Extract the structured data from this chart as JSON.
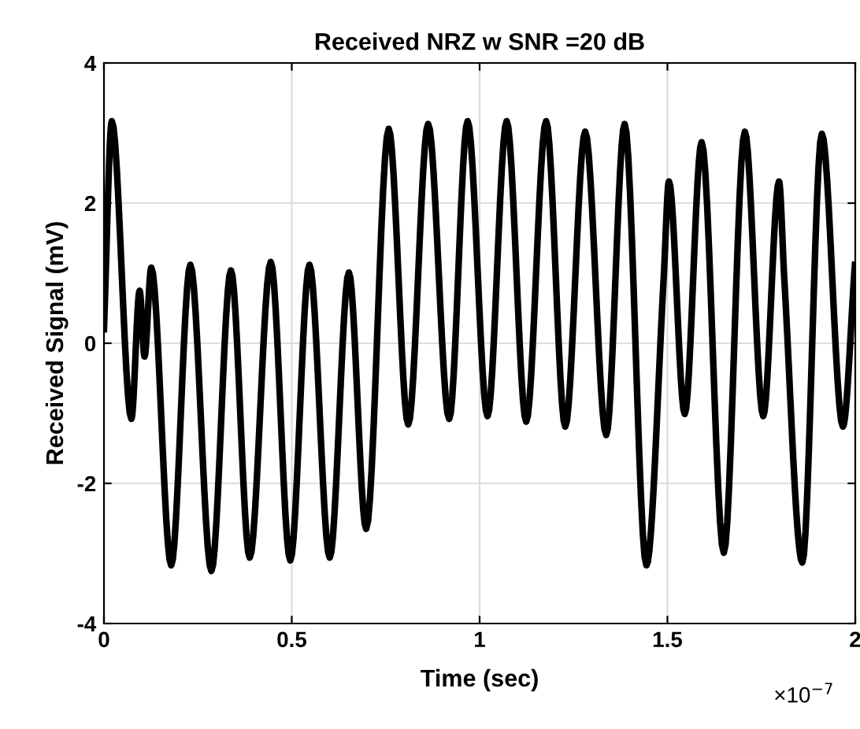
{
  "chart_data": {
    "type": "line",
    "title": "Received NRZ w SNR =20 dB",
    "xlabel": "Time (sec)",
    "ylabel": "Received Signal (mV)",
    "annotations": [
      "×10$^{−7}$"
    ],
    "series": [
      {
        "color": "#000000",
        "x": [
          0,
          0.021,
          0.073,
          0.095,
          0.108,
          0.126,
          0.179,
          0.23,
          0.286,
          0.338,
          0.388,
          0.444,
          0.496,
          0.547,
          0.601,
          0.652,
          0.698,
          0.758,
          0.81,
          0.863,
          0.919,
          0.968,
          1.021,
          1.072,
          1.124,
          1.177,
          1.228,
          1.281,
          1.337,
          1.386,
          1.444,
          1.49,
          1.504,
          1.546,
          1.591,
          1.65,
          1.706,
          1.755,
          1.797,
          1.811,
          1.859,
          1.911,
          1.967,
          1.999
        ],
        "values": [
          0.2,
          3.17,
          -1.08,
          0.75,
          -0.19,
          1.08,
          -3.17,
          1.12,
          -3.25,
          1.04,
          -3.06,
          1.16,
          -3.1,
          1.12,
          -3.06,
          1.01,
          -2.65,
          3.06,
          -1.16,
          3.13,
          -1.08,
          3.17,
          -1.04,
          3.17,
          -1.12,
          3.17,
          -1.19,
          3.02,
          -1.31,
          3.13,
          -3.17,
          0.93,
          2.31,
          -1.01,
          2.87,
          -2.99,
          3.02,
          -1.04,
          2.31,
          0.93,
          -3.13,
          2.99,
          -1.19,
          1.12
        ]
      }
    ],
    "xlim": [
      0,
      2
    ],
    "xticks": [
      0,
      0.5,
      1,
      1.5,
      2
    ],
    "ylim": [
      -4,
      4
    ],
    "yticks": [
      -4,
      -2,
      0,
      2,
      4
    ],
    "grid": true,
    "legend": false,
    "marker": "none",
    "line_style": "solid"
  }
}
